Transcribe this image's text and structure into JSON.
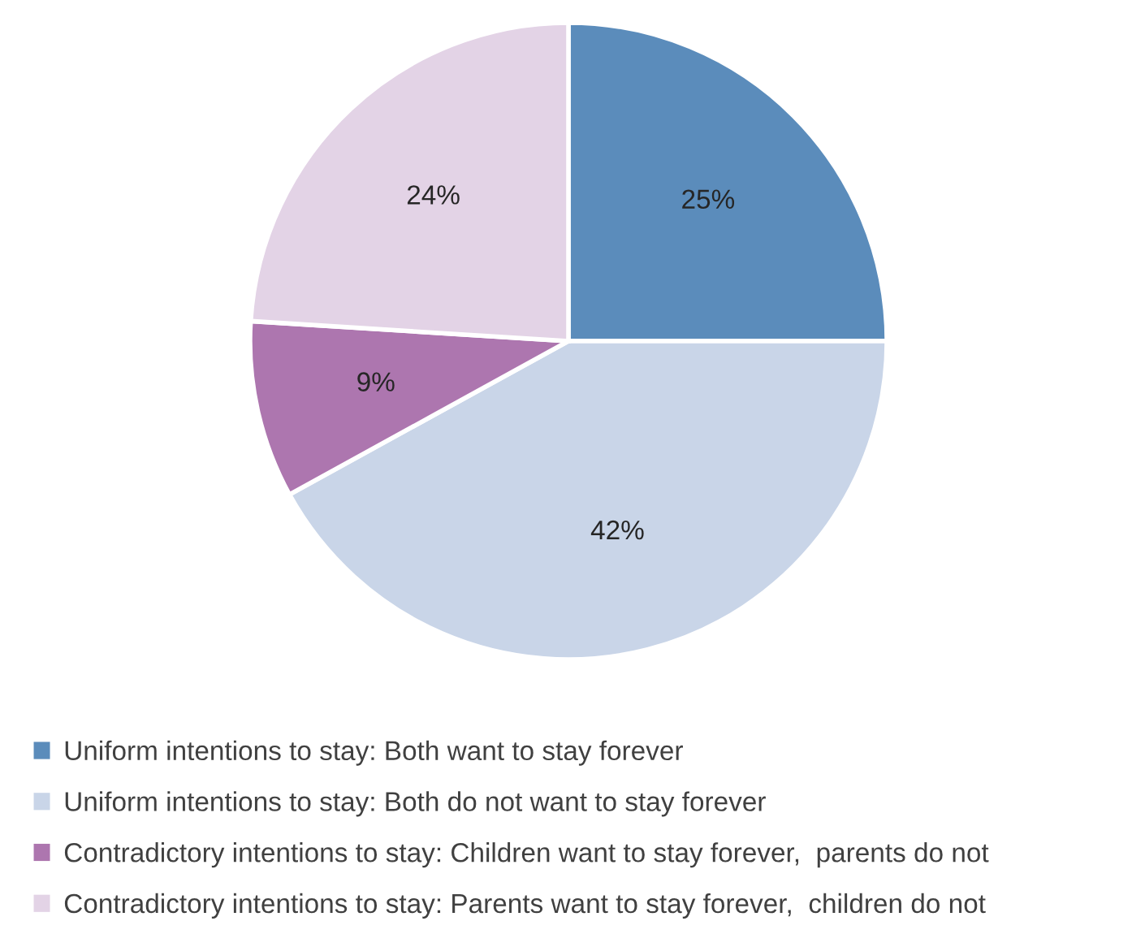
{
  "chart_data": {
    "type": "pie",
    "categories": [
      "Uniform intentions to stay: Both want to stay forever",
      "Uniform intentions to stay: Both do not want to stay forever",
      "Contradictory intentions to stay: Children want to stay forever,  parents do not",
      "Contradictory intentions to stay: Parents want to stay forever,  children do not"
    ],
    "values": [
      25,
      42,
      9,
      24
    ],
    "colors": [
      "#5b8cbb",
      "#c9d5e8",
      "#ad76af",
      "#e3d3e6"
    ],
    "value_labels": [
      "25%",
      "42%",
      "9%",
      "24%"
    ],
    "legend": "bottom"
  }
}
